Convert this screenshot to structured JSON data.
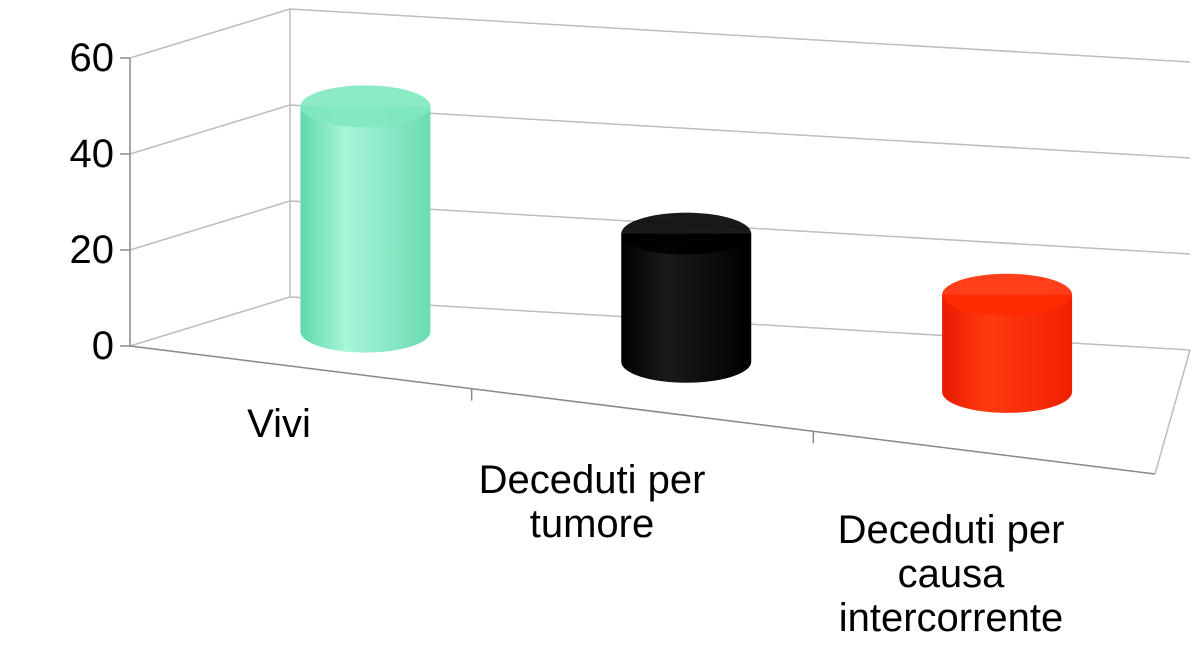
{
  "chart_data": {
    "type": "bar",
    "style": "3d-cylinder",
    "categories": [
      "Vivi",
      "Deceduti per tumore",
      "Deceduti per causa intercorrente"
    ],
    "category_labels": [
      "Vivi",
      "Deceduti per\ntumore",
      "Deceduti per\ncausa\nintercorrente"
    ],
    "values": [
      51,
      29,
      22
    ],
    "colors": [
      "#7fe8bf",
      "#000000",
      "#ff2a00"
    ],
    "ylim": [
      0,
      60
    ],
    "yticks": [
      "0",
      "20",
      "40",
      "60"
    ],
    "grid": true,
    "legend": "none",
    "title": "",
    "xlabel": "",
    "ylabel": ""
  }
}
